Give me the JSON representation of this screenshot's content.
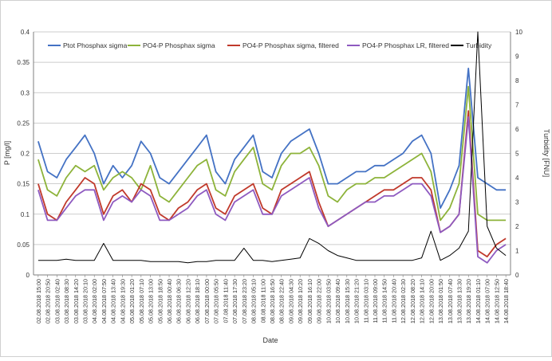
{
  "chart_data": {
    "type": "line",
    "xlabel": "Date",
    "ylabel": "P [mg/l]",
    "y2label": "Turbidity [FNU]",
    "ylim": [
      0,
      0.4
    ],
    "y2lim": [
      0,
      10
    ],
    "yticks": [
      "0",
      "0.05",
      "0.1",
      "0.15",
      "0.2",
      "0.25",
      "0.3",
      "0.35",
      "0.4"
    ],
    "y2ticks": [
      "0",
      "1",
      "2",
      "3",
      "4",
      "5",
      "6",
      "7",
      "8",
      "9",
      "10"
    ],
    "grid": true,
    "legend_placement": "top",
    "x_categories": [
      "02.08.2018 15:00",
      "02.08.2018 20:50",
      "03.08.2018 02:40",
      "03.08.2018 08:30",
      "03.08.2018 14:20",
      "03.08.2018 20:10",
      "04.08.2018 02:00",
      "04.08.2018 07:50",
      "04.08.2018 13:40",
      "04.08.2018 19:30",
      "05.08.2018 01:20",
      "05.08.2018 07:10",
      "05.08.2018 13:00",
      "05.08.2018 18:50",
      "06.08.2018 00:40",
      "06.08.2018 06:30",
      "06.08.2018 12:20",
      "06.08.2018 18:10",
      "07.08.2018 00:00",
      "07.08.2018 05:50",
      "07.08.2018 11:40",
      "07.08.2018 17:30",
      "07.08.2018 23:20",
      "08.08.2018 05:10",
      "08.08.2018 11:00",
      "08.08.2018 16:50",
      "08.08.2018 22:40",
      "09.08.2018 04:30",
      "09.08.2018 10:20",
      "09.08.2018 16:10",
      "09.08.2018 22:00",
      "10.08.2018 03:50",
      "10.08.2018 09:40",
      "10.08.2018 15:30",
      "10.08.2018 21:20",
      "11.08.2018 03:10",
      "11.08.2018 09:00",
      "11.08.2018 14:50",
      "11.08.2018 20:40",
      "12.08.2018 02:30",
      "12.08.2018 08:20",
      "12.08.2018 14:10",
      "12.08.2018 20:00",
      "13.08.2018 01:50",
      "13.08.2018 07:40",
      "13.08.2018 13:30",
      "13.08.2018 19:20",
      "14.08.2018 01:10",
      "14.08.2018 07:00",
      "14.08.2018 12:50",
      "14.08.2018 18:40"
    ],
    "series": [
      {
        "name": "Ptot Phosphax sigma",
        "color": "#4472C4",
        "axis": "left",
        "values": [
          0.22,
          0.17,
          0.16,
          0.19,
          0.21,
          0.23,
          0.2,
          0.15,
          0.18,
          0.16,
          0.18,
          0.22,
          0.2,
          0.16,
          0.15,
          0.17,
          0.19,
          0.21,
          0.23,
          0.17,
          0.15,
          0.19,
          0.21,
          0.23,
          0.17,
          0.16,
          0.2,
          0.22,
          0.23,
          0.24,
          0.2,
          0.15,
          0.15,
          0.16,
          0.17,
          0.17,
          0.18,
          0.18,
          0.19,
          0.2,
          0.22,
          0.23,
          0.2,
          0.11,
          0.14,
          0.18,
          0.34,
          0.16,
          0.15,
          0.14,
          0.14
        ]
      },
      {
        "name": "PO4-P Phosphax sigma",
        "color": "#8DB33A",
        "axis": "left",
        "values": [
          0.19,
          0.14,
          0.13,
          0.16,
          0.18,
          0.17,
          0.18,
          0.14,
          0.16,
          0.17,
          0.16,
          0.14,
          0.18,
          0.13,
          0.12,
          0.14,
          0.16,
          0.18,
          0.19,
          0.14,
          0.13,
          0.17,
          0.19,
          0.21,
          0.15,
          0.14,
          0.18,
          0.2,
          0.2,
          0.21,
          0.18,
          0.13,
          0.12,
          0.14,
          0.15,
          0.15,
          0.16,
          0.16,
          0.17,
          0.18,
          0.19,
          0.2,
          0.17,
          0.09,
          0.11,
          0.15,
          0.31,
          0.1,
          0.09,
          0.09,
          0.09
        ]
      },
      {
        "name": "PO4-P Phosphax sigma, filtered",
        "color": "#C0392B",
        "axis": "left",
        "values": [
          0.15,
          0.1,
          0.09,
          0.12,
          0.14,
          0.16,
          0.15,
          0.1,
          0.13,
          0.14,
          0.12,
          0.15,
          0.14,
          0.1,
          0.09,
          0.11,
          0.12,
          0.14,
          0.15,
          0.11,
          0.1,
          0.13,
          0.14,
          0.15,
          0.11,
          0.1,
          0.14,
          0.15,
          0.16,
          0.17,
          0.12,
          0.08,
          0.09,
          0.1,
          0.11,
          0.12,
          0.13,
          0.14,
          0.14,
          0.15,
          0.16,
          0.16,
          0.14,
          0.07,
          0.08,
          0.1,
          0.27,
          0.04,
          0.03,
          0.05,
          0.06
        ]
      },
      {
        "name": "PO4-P Phosphax LR, filtered",
        "color": "#8E5AC0",
        "axis": "left",
        "values": [
          0.14,
          0.09,
          0.09,
          0.11,
          0.13,
          0.14,
          0.14,
          0.09,
          0.12,
          0.13,
          0.12,
          0.14,
          0.13,
          0.09,
          0.09,
          0.1,
          0.11,
          0.13,
          0.14,
          0.1,
          0.09,
          0.12,
          0.13,
          0.14,
          0.1,
          0.1,
          0.13,
          0.14,
          0.15,
          0.16,
          0.11,
          0.08,
          0.09,
          0.1,
          0.11,
          0.12,
          0.12,
          0.13,
          0.13,
          0.14,
          0.15,
          0.15,
          0.13,
          0.07,
          0.08,
          0.1,
          0.26,
          0.03,
          0.02,
          0.04,
          0.05
        ]
      },
      {
        "name": "Turbidity",
        "color": "#000000",
        "axis": "right",
        "values": [
          0.6,
          0.6,
          0.6,
          0.65,
          0.6,
          0.6,
          0.6,
          1.3,
          0.6,
          0.6,
          0.6,
          0.6,
          0.55,
          0.55,
          0.55,
          0.55,
          0.5,
          0.55,
          0.55,
          0.6,
          0.6,
          0.6,
          1.1,
          0.6,
          0.6,
          0.55,
          0.6,
          0.65,
          0.7,
          1.5,
          1.3,
          1.0,
          0.8,
          0.7,
          0.6,
          0.6,
          0.6,
          0.6,
          0.6,
          0.6,
          0.6,
          0.7,
          1.8,
          0.6,
          0.8,
          1.1,
          1.8,
          10.0,
          2.0,
          1.1,
          0.8
        ]
      }
    ]
  }
}
